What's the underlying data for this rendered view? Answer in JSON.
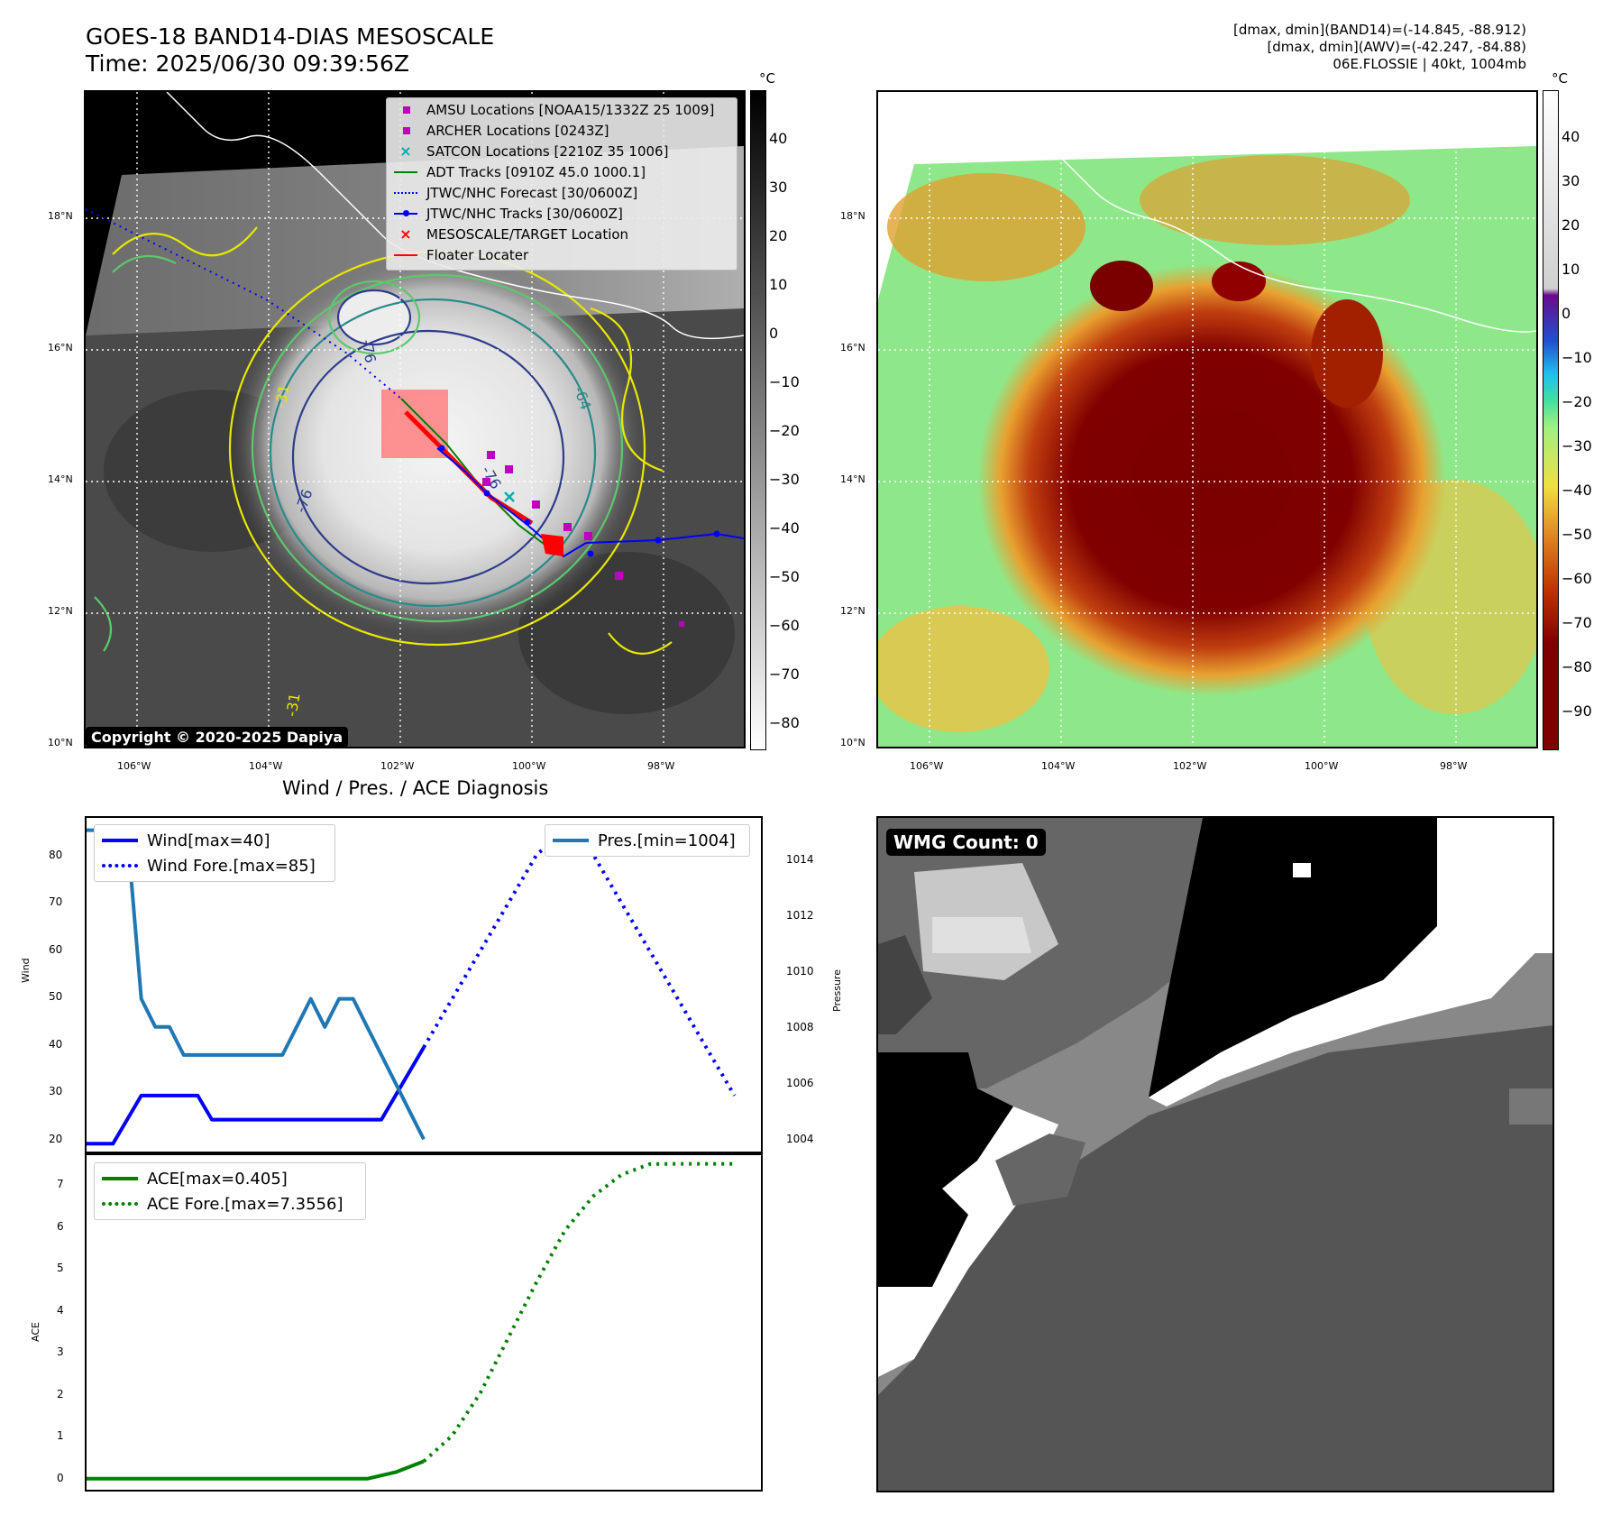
{
  "header": {
    "title_line1": "GOES-18 BAND14-DIAS MESOSCALE",
    "title_line2": "Time: 2025/06/30 09:39:56Z",
    "info_line1": "[dmax, dmin](BAND14)=(-14.845, -88.912)",
    "info_line2": "[dmax, dmin](AWV)=(-42.247, -84.88)",
    "info_line3": "06E.FLOSSIE | 40kt, 1004mb"
  },
  "map": {
    "lat_labels": [
      "18°N",
      "16°N",
      "14°N",
      "12°N",
      "10°N"
    ],
    "lon_labels": [
      "106°W",
      "104°W",
      "102°W",
      "100°W",
      "98°W"
    ],
    "colorbar_unit": "°C",
    "left_colorbar_ticks": [
      "40",
      "30",
      "20",
      "10",
      "0",
      "−10",
      "−20",
      "−30",
      "−40",
      "−50",
      "−60",
      "−70",
      "−80"
    ],
    "right_colorbar_ticks": [
      "40",
      "30",
      "20",
      "10",
      "0",
      "−10",
      "−20",
      "−30",
      "−40",
      "−50",
      "−60",
      "−70",
      "−80",
      "−90"
    ],
    "copyright": "Copyright © 2020-2025 Dapiya",
    "contour_labels": [
      "-76",
      "-31",
      "-76",
      "-31",
      "-64",
      "-76"
    ],
    "legend": [
      {
        "label": "AMSU Locations [NOAA15/1332Z 25 1009]",
        "symbol": "square",
        "color": "#c000c0"
      },
      {
        "label": "ARCHER Locations [0243Z]",
        "symbol": "square",
        "color": "#c000c0"
      },
      {
        "label": "SATCON Locations [2210Z 35 1006]",
        "symbol": "x",
        "color": "#00b0b0"
      },
      {
        "label": "ADT Tracks [0910Z 45.0 1000.1]",
        "symbol": "line",
        "color": "#008000"
      },
      {
        "label": "JTWC/NHC Forecast [30/0600Z]",
        "symbol": "dotted",
        "color": "#0000ff"
      },
      {
        "label": "JTWC/NHC Tracks [30/0600Z]",
        "symbol": "line-dot",
        "color": "#0000ff"
      },
      {
        "label": "MESOSCALE/TARGET Location",
        "symbol": "x",
        "color": "#ff0000"
      },
      {
        "label": "Floater Locater",
        "symbol": "line",
        "color": "#ff0000"
      }
    ]
  },
  "diagnosis": {
    "title": "Wind / Pres. / ACE Diagnosis",
    "wind_legend": [
      "Wind[max=40]",
      "Wind Fore.[max=85]"
    ],
    "pres_legend": [
      "Pres.[min=1004]"
    ],
    "ace_legend": [
      "ACE[max=0.405]",
      "ACE Fore.[max=7.3556]"
    ],
    "wind_ylabel": "Wind",
    "pres_ylabel": "Pressure",
    "ace_ylabel": "ACE",
    "wind_ticks": [
      "80",
      "70",
      "60",
      "50",
      "40",
      "30",
      "20"
    ],
    "pres_ticks": [
      "1014",
      "1012",
      "1010",
      "1008",
      "1006",
      "1004"
    ],
    "ace_ticks": [
      "7",
      "6",
      "5",
      "4",
      "3",
      "2",
      "1",
      "0"
    ]
  },
  "wmg": {
    "label": "WMG Count: 0"
  },
  "chart_data": [
    {
      "type": "line",
      "title": "Wind / Pres. / ACE Diagnosis",
      "ylabel": "Wind",
      "ylim": [
        18,
        88
      ],
      "series": [
        {
          "name": "Wind[max=40]",
          "style": "solid",
          "color": "#0000ff",
          "x": [
            0,
            1,
            2,
            3,
            4,
            5,
            6,
            7,
            8,
            9,
            10,
            11,
            12,
            13,
            14,
            15,
            16,
            17,
            18,
            19,
            20,
            21,
            22,
            23,
            24
          ],
          "values": [
            20,
            20,
            20,
            25,
            30,
            30,
            30,
            30,
            30,
            25,
            25,
            25,
            25,
            25,
            25,
            25,
            25,
            25,
            25,
            25,
            25,
            25,
            30,
            35,
            40
          ]
        },
        {
          "name": "Wind Fore.[max=85]",
          "style": "dotted",
          "color": "#0000ff",
          "x": [
            24,
            26,
            28,
            30,
            32,
            34,
            36,
            38,
            40,
            42,
            44,
            46
          ],
          "values": [
            40,
            50,
            60,
            70,
            80,
            85,
            80,
            70,
            60,
            50,
            40,
            30
          ]
        }
      ]
    },
    {
      "type": "line",
      "ylabel": "Pressure",
      "ylim": [
        1003.5,
        1015.5
      ],
      "series": [
        {
          "name": "Pres.[min=1004]",
          "style": "solid",
          "color": "#1f77b4",
          "x": [
            0,
            1,
            2,
            3,
            4,
            5,
            6,
            7,
            8,
            9,
            10,
            11,
            12,
            13,
            14,
            15,
            16,
            17,
            18,
            19,
            20,
            21,
            22,
            23,
            24
          ],
          "values": [
            1015,
            1015,
            1015,
            1015,
            1009,
            1008,
            1008,
            1007,
            1007,
            1007,
            1007,
            1007,
            1007,
            1007,
            1007,
            1008,
            1009,
            1008,
            1009,
            1009,
            1008,
            1007,
            1006,
            1005,
            1004
          ]
        }
      ]
    },
    {
      "type": "line",
      "ylabel": "ACE",
      "ylim": [
        -0.3,
        7.6
      ],
      "series": [
        {
          "name": "ACE[max=0.405]",
          "style": "solid",
          "color": "#008000",
          "x": [
            0,
            2,
            4,
            6,
            8,
            10,
            12,
            14,
            16,
            18,
            20,
            22,
            24
          ],
          "values": [
            0,
            0,
            0,
            0,
            0,
            0,
            0,
            0,
            0,
            0,
            0,
            0.15,
            0.405
          ]
        },
        {
          "name": "ACE Fore.[max=7.3556]",
          "style": "dotted",
          "color": "#008000",
          "x": [
            24,
            26,
            28,
            30,
            32,
            34,
            36,
            38,
            40,
            42,
            44,
            46
          ],
          "values": [
            0.405,
            1.0,
            2.0,
            3.3,
            4.6,
            5.8,
            6.6,
            7.1,
            7.35,
            7.3556,
            7.3556,
            7.3556
          ]
        }
      ]
    }
  ]
}
